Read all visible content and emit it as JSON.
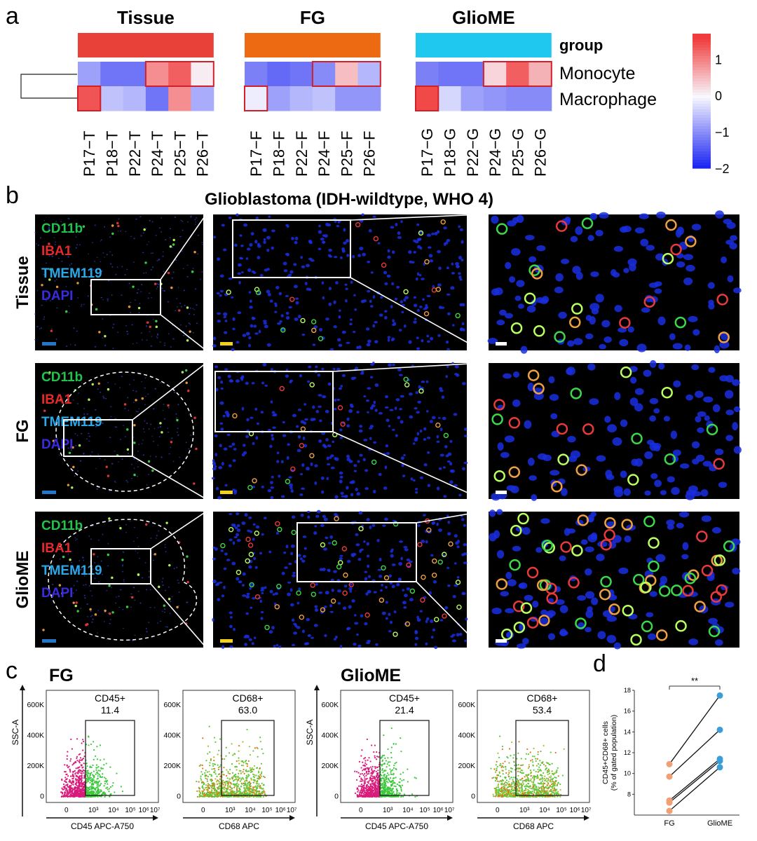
{
  "panel_a": {
    "label": "a",
    "groups": [
      "Tissue",
      "FG",
      "GlioME"
    ],
    "group_colors": [
      "#e8413a",
      "#ee6a12",
      "#1ec8ef"
    ],
    "group_annotation": "group",
    "rows": [
      "Monocyte",
      "Macrophage"
    ],
    "samples": [
      [
        "P17−T",
        "P18−T",
        "P22−T",
        "P24−T",
        "P25−T",
        "P26−T"
      ],
      [
        "P17−F",
        "P18−F",
        "P22−F",
        "P24−F",
        "P25−F",
        "P26−F"
      ],
      [
        "P17−G",
        "P18−G",
        "P22−G",
        "P24−G",
        "P25−G",
        "P26−G"
      ]
    ],
    "colorbar_ticks": [
      "1",
      "0",
      "−1",
      "−2"
    ],
    "colorbar_values": [
      1,
      0,
      -1,
      -2
    ],
    "colorbar_range": [
      -2,
      1.7
    ]
  },
  "chart_data": [
    {
      "type": "heatmap",
      "title": "Tissue / FG / GlioME",
      "rows": [
        "Monocyte",
        "Macrophage"
      ],
      "columns": [
        "P17−T",
        "P18−T",
        "P22−T",
        "P24−T",
        "P25−T",
        "P26−T",
        "P17−F",
        "P18−F",
        "P22−F",
        "P24−F",
        "P25−F",
        "P26−F",
        "P17−G",
        "P18−G",
        "P22−G",
        "P24−G",
        "P25−G",
        "P26−G"
      ],
      "values": [
        [
          -0.8,
          -1.2,
          -1.2,
          0.9,
          1.3,
          0.1,
          -1.1,
          -1.3,
          -1.2,
          -1.0,
          0.5,
          -0.6,
          -1.1,
          -1.2,
          -1.2,
          0.3,
          1.3,
          0.6
        ],
        [
          1.4,
          -0.5,
          -0.6,
          -1.2,
          0.9,
          -0.7,
          -0.1,
          -0.8,
          -0.6,
          -0.5,
          -0.9,
          -0.9,
          1.5,
          -0.3,
          -0.8,
          -0.9,
          -1.0,
          -1.0
        ]
      ],
      "highlighted": [
        "Monocyte:P24-P26 (each group)",
        "Macrophage:P17 (each group)"
      ]
    },
    {
      "type": "scatter",
      "title": "FG vs GlioME",
      "categories": [
        "FG",
        "GlioME"
      ],
      "ylabel": "CD45+CD68+ cells (% of gated population)",
      "ylim": [
        6,
        18
      ],
      "yticks": [
        8,
        10,
        12,
        14,
        16,
        18
      ],
      "pairs": [
        [
          10.9,
          17.5
        ],
        [
          9.7,
          14.2
        ],
        [
          7.4,
          11.4
        ],
        [
          7.2,
          11.2
        ],
        [
          6.4,
          10.6
        ]
      ],
      "significance": "**"
    }
  ],
  "panel_b": {
    "label": "b",
    "title": "Glioblastoma (IDH-wildtype, WHO 4)",
    "rows": [
      "Tissue",
      "FG",
      "GlioME"
    ],
    "markers": [
      {
        "name": "CD11b",
        "color": "#22c24c"
      },
      {
        "name": "IBA1",
        "color": "#e42a2a"
      },
      {
        "name": "TMEM119",
        "color": "#2aa8e8"
      },
      {
        "name": "DAPI",
        "color": "#3a2ae0"
      }
    ],
    "scale_bar_colors": [
      "#2377c8",
      "#f2d21a",
      "#ffffff"
    ]
  },
  "panel_c": {
    "label": "c",
    "groups": [
      {
        "title": "FG",
        "plots": [
          {
            "gate_name": "CD45+",
            "gate_value": "11.4",
            "xlabel": "CD45 APC-A750",
            "ylabel": "SSC-A"
          },
          {
            "gate_name": "CD68+",
            "gate_value": "63.0",
            "xlabel": "CD68 APC",
            "ylabel": ""
          }
        ]
      },
      {
        "title": "GlioME",
        "plots": [
          {
            "gate_name": "CD45+",
            "gate_value": "21.4",
            "xlabel": "CD45 APC-A750",
            "ylabel": "SSC-A"
          },
          {
            "gate_name": "CD68+",
            "gate_value": "53.4",
            "xlabel": "CD68 APC",
            "ylabel": ""
          }
        ]
      }
    ],
    "y_ticks": [
      "600K",
      "400K",
      "200K",
      "0"
    ]
  },
  "panel_d": {
    "label": "d",
    "ylabel_line1": "CD45+CD68+ cells",
    "ylabel_line2": "(% of  gated population)",
    "xlabels": [
      "FG",
      "GlioME"
    ],
    "yticks": [
      "8",
      "10",
      "12",
      "14",
      "16",
      "18"
    ],
    "significance": "**",
    "colors": {
      "fg": "#f0a074",
      "gliome": "#3a9fd8"
    }
  }
}
